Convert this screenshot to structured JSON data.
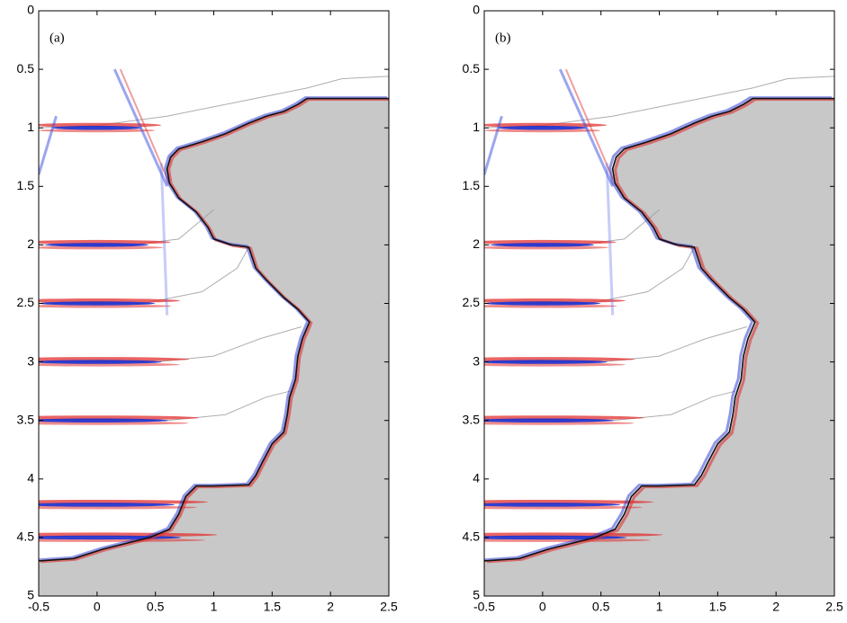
{
  "chart_data": [
    {
      "type": "seismic",
      "annotation": "(a)",
      "xlim": [
        -0.5,
        2.5
      ],
      "ylim": [
        0,
        5
      ],
      "y_inverted": true,
      "xticks": [
        -0.5,
        0,
        0.5,
        1,
        1.5,
        2,
        2.5
      ],
      "yticks": [
        0,
        0.5,
        1,
        1.5,
        2,
        2.5,
        3,
        3.5,
        4,
        4.5,
        5
      ],
      "salt_color": "#c8c8c8"
    },
    {
      "type": "seismic",
      "annotation": "(b)",
      "xlim": [
        -0.5,
        2.5
      ],
      "ylim": [
        0,
        5
      ],
      "y_inverted": true,
      "xticks": [
        -0.5,
        0,
        0.5,
        1,
        1.5,
        2,
        2.5
      ],
      "yticks": [
        0,
        0.5,
        1,
        1.5,
        2,
        2.5,
        3,
        3.5,
        4,
        4.5,
        5
      ],
      "salt_color": "#c8c8c8"
    }
  ]
}
